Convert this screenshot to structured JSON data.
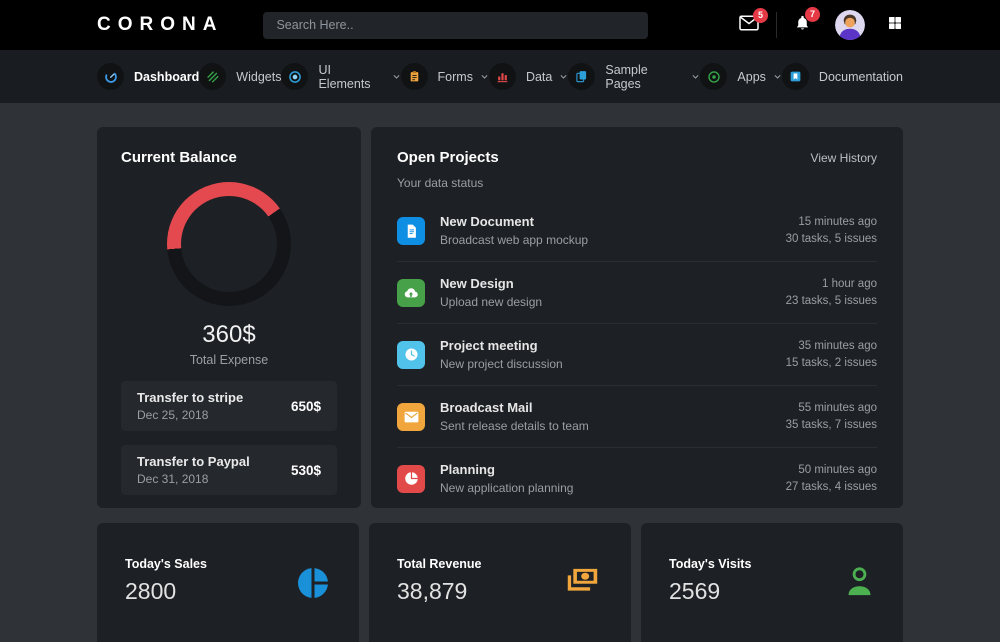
{
  "header": {
    "logo": "CORONA",
    "search": {
      "placeholder": "Search Here.."
    },
    "messages_badge": "5",
    "notifications_badge": "7"
  },
  "navbar": {
    "items": [
      {
        "label": "Dashboard",
        "icon": "gauge-icon",
        "color": "#3d9ae8",
        "caret": false,
        "active": true
      },
      {
        "label": "Widgets",
        "icon": "widgets-icon",
        "color": "#35a447",
        "caret": false,
        "active": false
      },
      {
        "label": "UI Elements",
        "icon": "ui-elements-icon",
        "color": "#2d9fd8",
        "caret": true,
        "active": false
      },
      {
        "label": "Forms",
        "icon": "forms-icon",
        "color": "#f0a63c",
        "caret": true,
        "active": false
      },
      {
        "label": "Data",
        "icon": "bar-chart-icon",
        "color": "#e24a4a",
        "caret": true,
        "active": false
      },
      {
        "label": "Sample Pages",
        "icon": "pages-icon",
        "color": "#2d9fd8",
        "caret": true,
        "active": false
      },
      {
        "label": "Apps",
        "icon": "apps-icon",
        "color": "#35a447",
        "caret": true,
        "active": false
      },
      {
        "label": "Documentation",
        "icon": "documentation-icon",
        "color": "#2d9fd8",
        "caret": false,
        "active": false
      }
    ]
  },
  "balance": {
    "title": "Current Balance",
    "amount": "360$",
    "caption": "Total Expense",
    "donut": {
      "arc_color": "#e4494f",
      "track_color": "#131518",
      "arc_start_deg": 265,
      "arc_end_deg": 55
    },
    "transfers": [
      {
        "title": "Transfer to stripe",
        "date": "Dec 25, 2018",
        "amount": "650$"
      },
      {
        "title": "Transfer to Paypal",
        "date": "Dec 31, 2018",
        "amount": "530$"
      }
    ]
  },
  "projects": {
    "title": "Open Projects",
    "subtitle": "Your data status",
    "action": "View History",
    "items": [
      {
        "title": "New Document",
        "subtitle": "Broadcast web app mockup",
        "time": "15 minutes ago",
        "meta": "30 tasks, 5 issues",
        "icon": "document-icon",
        "color": "#0f8fe4"
      },
      {
        "title": "New Design",
        "subtitle": "Upload new design",
        "time": "1 hour ago",
        "meta": "23 tasks, 5 issues",
        "icon": "cloud-upload-icon",
        "color": "#46a149"
      },
      {
        "title": "Project meeting",
        "subtitle": "New project discussion",
        "time": "35 minutes ago",
        "meta": "15 tasks, 2 issues",
        "icon": "clock-icon",
        "color": "#51c3ea"
      },
      {
        "title": "Broadcast Mail",
        "subtitle": "Sent release details to team",
        "time": "55 minutes ago",
        "meta": "35 tasks, 7 issues",
        "icon": "envelope-icon",
        "color": "#f0a63c"
      },
      {
        "title": "Planning",
        "subtitle": "New application planning",
        "time": "50 minutes ago",
        "meta": "27 tasks, 4 issues",
        "icon": "pie-chart-icon",
        "color": "#e24a4a"
      }
    ]
  },
  "stats": [
    {
      "label": "Today's Sales",
      "value": "2800",
      "icon": "pie-chart-icon",
      "color": "#1a90d8"
    },
    {
      "label": "Total Revenue",
      "value": "38,879",
      "icon": "cash-icon",
      "color": "#f0a63c"
    },
    {
      "label": "Today's Visits",
      "value": "2569",
      "icon": "person-icon",
      "color": "#4caf50"
    }
  ]
}
